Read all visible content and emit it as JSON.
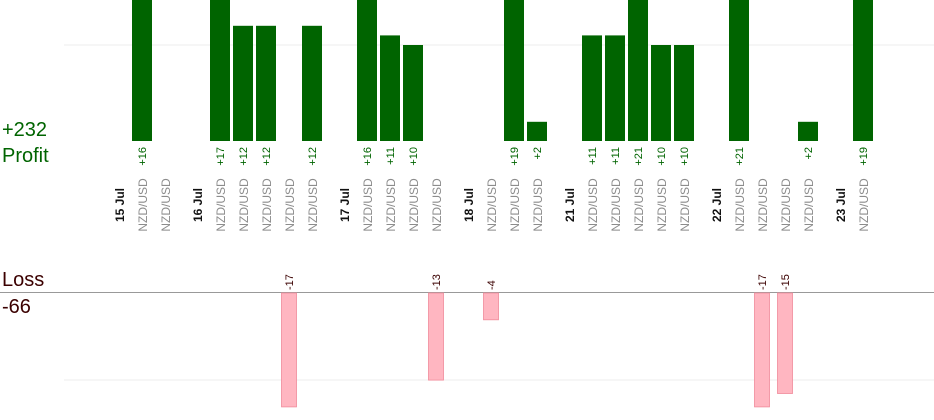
{
  "summary": {
    "profit_total": "+232",
    "profit_label": "Profit",
    "loss_label": "Loss",
    "loss_total": "-66"
  },
  "colors": {
    "profit_bar": "#006400",
    "profit_text": "#006400",
    "loss_bar": "#ffb6c1",
    "loss_text": "#3b0000",
    "date_text": "#111111",
    "pair_text": "#8c8c8c",
    "gridline": "#eeeeee",
    "axis": "#999999"
  },
  "chart_data": {
    "type": "bar",
    "columns": [
      {
        "date": "15 Jul"
      },
      {
        "pair": "NZD/USD",
        "profit": 16,
        "label": "+16"
      },
      {
        "pair": "NZD/USD"
      },
      {
        "gap": true
      },
      {
        "date": "16 Jul"
      },
      {
        "pair": "NZD/USD",
        "profit": 17,
        "label": "+17"
      },
      {
        "pair": "NZD/USD",
        "profit": 12,
        "label": "+12"
      },
      {
        "pair": "NZD/USD",
        "profit": 12,
        "label": "+12"
      },
      {
        "pair": "NZD/USD",
        "loss": -17,
        "label": "-17"
      },
      {
        "pair": "NZD/USD",
        "profit": 12,
        "label": "+12"
      },
      {
        "gap": true
      },
      {
        "date": "17 Jul"
      },
      {
        "pair": "NZD/USD",
        "profit": 16,
        "label": "+16"
      },
      {
        "pair": "NZD/USD",
        "profit": 11,
        "label": "+11"
      },
      {
        "pair": "NZD/USD",
        "profit": 10,
        "label": "+10"
      },
      {
        "pair": "NZD/USD",
        "loss": -13,
        "label": "-13"
      },
      {
        "gap": true
      },
      {
        "date": "18 Jul"
      },
      {
        "pair": "NZD/USD",
        "loss": -4,
        "label": "-4"
      },
      {
        "pair": "NZD/USD",
        "profit": 19,
        "label": "+19"
      },
      {
        "pair": "NZD/USD",
        "profit": 2,
        "label": "+2"
      },
      {
        "gap": true
      },
      {
        "date": "21 Jul"
      },
      {
        "pair": "NZD/USD",
        "profit": 11,
        "label": "+11"
      },
      {
        "pair": "NZD/USD",
        "profit": 11,
        "label": "+11"
      },
      {
        "pair": "NZD/USD",
        "profit": 21,
        "label": "+21"
      },
      {
        "pair": "NZD/USD",
        "profit": 10,
        "label": "+10"
      },
      {
        "pair": "NZD/USD",
        "profit": 10,
        "label": "+10"
      },
      {
        "gap": true
      },
      {
        "date": "22 Jul"
      },
      {
        "pair": "NZD/USD",
        "profit": 21,
        "label": "+21"
      },
      {
        "pair": "NZD/USD",
        "loss": -17,
        "label": "-17"
      },
      {
        "pair": "NZD/USD",
        "loss": -15,
        "label": "-15"
      },
      {
        "pair": "NZD/USD",
        "profit": 2,
        "label": "+2"
      },
      {
        "gap": true
      },
      {
        "date": "23 Jul"
      },
      {
        "pair": "NZD/USD",
        "profit": 19,
        "label": "+19"
      }
    ]
  }
}
